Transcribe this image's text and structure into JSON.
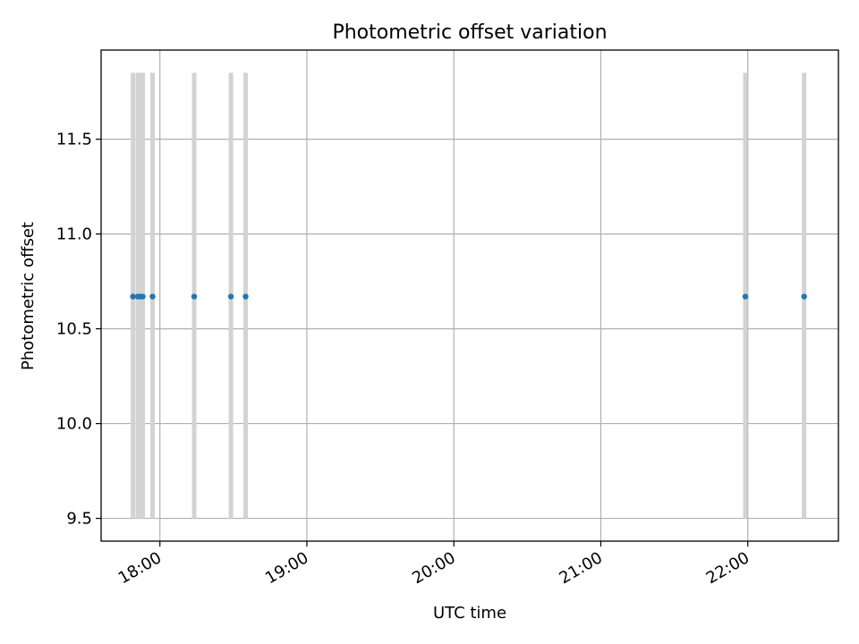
{
  "chart_data": {
    "type": "scatter",
    "title": "Photometric offset variation",
    "xlabel": "UTC time",
    "ylabel": "Photometric offset",
    "xlim": [
      "17:36",
      "22:37"
    ],
    "ylim": [
      9.38,
      11.97
    ],
    "x_ticks": [
      "18:00",
      "19:00",
      "20:00",
      "21:00",
      "22:00"
    ],
    "y_ticks": [
      9.5,
      10.0,
      10.5,
      11.0,
      11.5
    ],
    "grid": true,
    "legend": "none",
    "series": [
      {
        "x": [
          "17:49",
          "17:51",
          "17:52",
          "17:53",
          "17:57",
          "18:14",
          "18:29",
          "18:35",
          "21:59",
          "22:23"
        ],
        "y": [
          10.67,
          10.67,
          10.67,
          10.67,
          10.67,
          10.67,
          10.67,
          10.67,
          10.67,
          10.67
        ],
        "error_range": [
          9.5,
          11.85
        ]
      }
    ],
    "colors": {
      "points": "#1f77b4",
      "error_bars": "#d3d3d3",
      "grid": "#b0b0b0"
    }
  }
}
